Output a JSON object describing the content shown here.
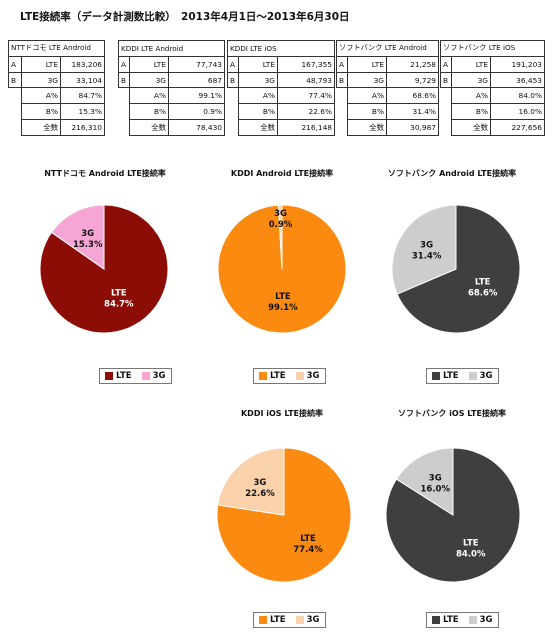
{
  "title": "LTE接続率（データ計測数比較）　2013年4月1日〜2013年6月30日",
  "tables": [
    {
      "header": "NTTドコモ LTE Android",
      "lte_label": "LTE",
      "lte": "183,206",
      "g3_label": "3G",
      "g3": "33,104",
      "a_label": "A%",
      "a": "84.7%",
      "b_label": "B%",
      "b": "15.3%",
      "total_label": "全数",
      "total": "216,310"
    },
    {
      "header": "KDDI LTE Android",
      "lte_label": "LTE",
      "lte": "77,743",
      "g3_label": "3G",
      "g3": "687",
      "a_label": "A%",
      "a": "99.1%",
      "b_label": "B%",
      "b": "0.9%",
      "total_label": "全数",
      "total": "78,430"
    },
    {
      "header": "KDDI LTE iOS",
      "lte_label": "LTE",
      "lte": "167,355",
      "g3_label": "3G",
      "g3": "48,793",
      "a_label": "A%",
      "a": "77.4%",
      "b_label": "B%",
      "b": "22.6%",
      "total_label": "全数",
      "total": "216,148"
    },
    {
      "header": "ソフトバンク LTE Android",
      "lte_label": "LTE",
      "lte": "21,258",
      "g3_label": "3G",
      "g3": "9,729",
      "a_label": "A%",
      "a": "68.6%",
      "b_label": "B%",
      "b": "31.4%",
      "total_label": "全数",
      "total": "30,987"
    },
    {
      "header": "ソフトバンク LTE iOS",
      "lte_label": "LTE",
      "lte": "191,203",
      "g3_label": "3G",
      "g3": "36,453",
      "a_label": "A%",
      "a": "84.0%",
      "b_label": "B%",
      "b": "16.0%",
      "total_label": "全数",
      "total": "227,656"
    }
  ],
  "row_keys": {
    "a": "A",
    "b": "B"
  },
  "chart_data": [
    {
      "type": "pie",
      "title": "NTTドコモ Android LTE接続率",
      "slices": [
        {
          "label": "LTE",
          "value": 84.7,
          "text": "84.7%",
          "color": "#8b0d05"
        },
        {
          "label": "3G",
          "value": 15.3,
          "text": "15.3%",
          "color": "#f6a6d4"
        }
      ],
      "legend": [
        "LTE",
        "3G"
      ],
      "label_colors": [
        "#ffffff",
        "#111111"
      ]
    },
    {
      "type": "pie",
      "title": "KDDI Android LTE接続率",
      "slices": [
        {
          "label": "LTE",
          "value": 99.1,
          "text": "99.1%",
          "color": "#fb8a10"
        },
        {
          "label": "3G",
          "value": 0.9,
          "text": "0.9%",
          "color": "#f9d1aa"
        }
      ],
      "legend": [
        "LTE",
        "3G"
      ],
      "label_colors": [
        "#111111",
        "#111111"
      ]
    },
    {
      "type": "pie",
      "title": "ソフトバンク Android LTE接続率",
      "slices": [
        {
          "label": "LTE",
          "value": 68.6,
          "text": "68.6%",
          "color": "#3f3f3f"
        },
        {
          "label": "3G",
          "value": 31.4,
          "text": "31.4%",
          "color": "#cdcdcd"
        }
      ],
      "legend": [
        "LTE",
        "3G"
      ],
      "label_colors": [
        "#ffffff",
        "#111111"
      ]
    },
    {
      "type": "pie",
      "title": "KDDI iOS LTE接続率",
      "slices": [
        {
          "label": "LTE",
          "value": 77.4,
          "text": "77.4%",
          "color": "#fb8a10"
        },
        {
          "label": "3G",
          "value": 22.6,
          "text": "22.6%",
          "color": "#f9d1aa"
        }
      ],
      "legend": [
        "LTE",
        "3G"
      ],
      "label_colors": [
        "#111111",
        "#111111"
      ]
    },
    {
      "type": "pie",
      "title": "ソフトバンク iOS LTE接続率",
      "slices": [
        {
          "label": "LTE",
          "value": 84.0,
          "text": "84.0%",
          "color": "#3f3f3f"
        },
        {
          "label": "3G",
          "value": 16.0,
          "text": "16.0%",
          "color": "#cdcdcd"
        }
      ],
      "legend": [
        "LTE",
        "3G"
      ],
      "label_colors": [
        "#ffffff",
        "#111111"
      ]
    }
  ]
}
